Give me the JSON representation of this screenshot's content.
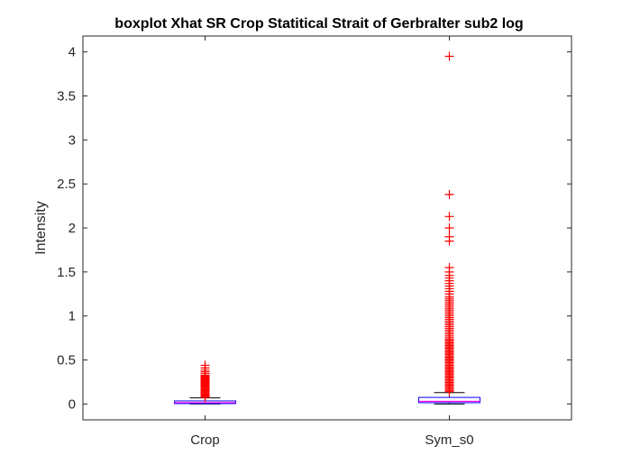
{
  "chart_data": {
    "type": "boxplot",
    "title": "boxplot Xhat SR Crop Statitical Strait of Gerbralter sub2 log",
    "xlabel": "",
    "ylabel": "Intensity",
    "ylim": [
      -0.18,
      4.18
    ],
    "yticks": [
      0,
      0.5,
      1,
      1.5,
      2,
      2.5,
      3,
      3.5,
      4
    ],
    "ytick_labels": [
      "0",
      "0.5",
      "1",
      "1.5",
      "2",
      "2.5",
      "3",
      "3.5",
      "4"
    ],
    "categories": [
      "Crop",
      "Sym_s0"
    ],
    "grid": false,
    "colors": {
      "box": "#0000ff",
      "median": "#ff00ff",
      "whisker": "#000000",
      "outlier": "#ff0000"
    },
    "boxes": [
      {
        "name": "Crop",
        "q1": 0.005,
        "median": 0.015,
        "q3": 0.035,
        "whisker_low": 0.0,
        "whisker_high": 0.07,
        "outliers": [
          0.075,
          0.085,
          0.095,
          0.105,
          0.115,
          0.125,
          0.135,
          0.145,
          0.155,
          0.165,
          0.175,
          0.185,
          0.195,
          0.205,
          0.215,
          0.225,
          0.235,
          0.245,
          0.255,
          0.265,
          0.275,
          0.285,
          0.295,
          0.305,
          0.315,
          0.325,
          0.345,
          0.365,
          0.385,
          0.41,
          0.44
        ]
      },
      {
        "name": "Sym_s0",
        "q1": 0.015,
        "median": 0.03,
        "q3": 0.075,
        "whisker_low": 0.0,
        "whisker_high": 0.13,
        "outliers": [
          0.14,
          0.155,
          0.17,
          0.185,
          0.2,
          0.215,
          0.23,
          0.245,
          0.26,
          0.275,
          0.29,
          0.305,
          0.32,
          0.335,
          0.35,
          0.365,
          0.38,
          0.395,
          0.41,
          0.425,
          0.44,
          0.455,
          0.47,
          0.485,
          0.5,
          0.515,
          0.53,
          0.545,
          0.56,
          0.575,
          0.59,
          0.605,
          0.62,
          0.635,
          0.65,
          0.665,
          0.68,
          0.695,
          0.71,
          0.725,
          0.74,
          0.76,
          0.78,
          0.8,
          0.82,
          0.84,
          0.86,
          0.88,
          0.9,
          0.92,
          0.94,
          0.96,
          0.98,
          1.0,
          1.02,
          1.04,
          1.06,
          1.08,
          1.1,
          1.12,
          1.14,
          1.16,
          1.18,
          1.2,
          1.22,
          1.25,
          1.28,
          1.31,
          1.34,
          1.37,
          1.4,
          1.43,
          1.46,
          1.5,
          1.55,
          1.85,
          1.9,
          2.0,
          2.13,
          2.38,
          3.95
        ]
      }
    ]
  }
}
